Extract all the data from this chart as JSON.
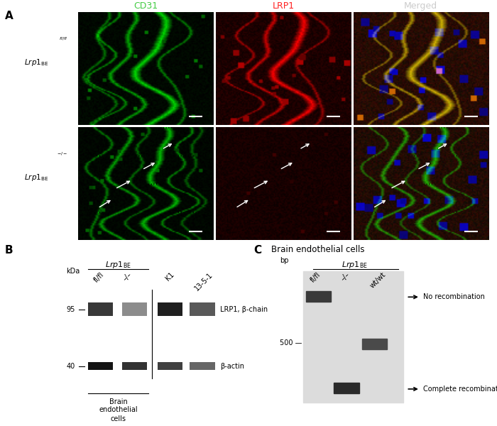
{
  "col_labels": [
    "CD31",
    "LRP1",
    "Merged"
  ],
  "col_label_colors": [
    "#44cc44",
    "#ff2222",
    "#cccccc"
  ],
  "row_superscripts": [
    "fl/fl",
    "–/–"
  ],
  "panel_B_xlabel_groups": [
    "fl/fl",
    "–/–",
    "K1",
    "13-5-1"
  ],
  "panel_B_band1_label": "LRP1, β-chain",
  "panel_B_band2_label": "β-actin",
  "panel_B_bottom_label": [
    "Brain",
    "endothelial",
    "cells"
  ],
  "panel_C_title": "Brain endothelial cells",
  "panel_C_xlabel_groups": [
    "fl/fl",
    "–/–",
    "wt/wt"
  ],
  "panel_C_arrow1_label": "No recombination",
  "panel_C_arrow2_label": "Complete recombination",
  "fig_width": 7.0,
  "fig_height": 6.0,
  "dpi": 100
}
